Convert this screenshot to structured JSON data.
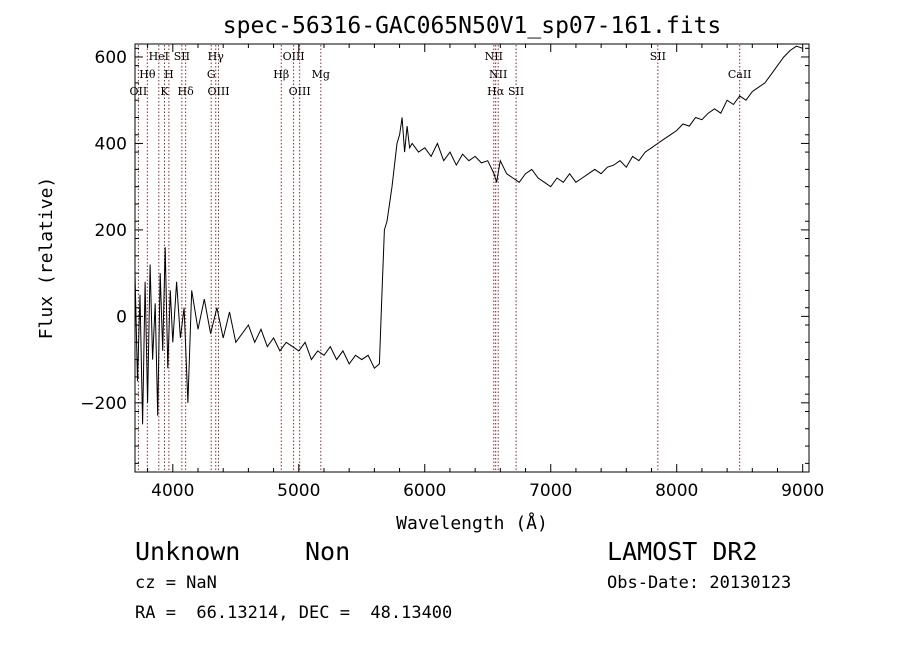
{
  "chart_data": {
    "type": "line",
    "title": "spec-56316-GAC065N50V1_sp07-161.fits",
    "xlabel": "Wavelength (Å)",
    "ylabel": "Flux (relative)",
    "xlim": [
      3700,
      9050
    ],
    "ylim": [
      -360,
      630
    ],
    "xticks": [
      4000,
      5000,
      6000,
      7000,
      8000,
      9000
    ],
    "yticks": [
      -200,
      0,
      200,
      400,
      600
    ],
    "grid": false,
    "line_color": "#000000",
    "marker_color": "#8b2a2a",
    "series": [
      {
        "x": [
          3700,
          3720,
          3740,
          3760,
          3780,
          3800,
          3820,
          3840,
          3860,
          3880,
          3900,
          3920,
          3940,
          3960,
          3980,
          4000,
          4030,
          4060,
          4090,
          4120,
          4150,
          4200,
          4250,
          4300,
          4350,
          4400,
          4450,
          4500,
          4550,
          4600,
          4650,
          4700,
          4750,
          4800,
          4850,
          4900,
          4950,
          5000,
          5050,
          5100,
          5150,
          5200,
          5250,
          5300,
          5350,
          5400,
          5450,
          5500,
          5550,
          5600,
          5640,
          5660,
          5680,
          5700,
          5720,
          5740,
          5760,
          5780,
          5800,
          5820,
          5840,
          5860,
          5880,
          5900,
          5950,
          6000,
          6050,
          6100,
          6150,
          6200,
          6250,
          6300,
          6350,
          6400,
          6450,
          6500,
          6550,
          6570,
          6600,
          6650,
          6700,
          6750,
          6800,
          6850,
          6900,
          6950,
          7000,
          7050,
          7100,
          7150,
          7200,
          7250,
          7300,
          7350,
          7400,
          7450,
          7500,
          7550,
          7600,
          7650,
          7700,
          7750,
          7800,
          7850,
          7900,
          7950,
          8000,
          8050,
          8100,
          8150,
          8200,
          8250,
          8300,
          8350,
          8400,
          8450,
          8500,
          8550,
          8600,
          8650,
          8700,
          8750,
          8800,
          8850,
          8900,
          8950,
          9000
        ],
        "y": [
          100,
          -150,
          50,
          -250,
          80,
          -200,
          120,
          -100,
          30,
          -230,
          100,
          -80,
          160,
          -120,
          60,
          -60,
          80,
          -50,
          20,
          -200,
          60,
          -30,
          40,
          -40,
          20,
          -50,
          10,
          -60,
          -40,
          -20,
          -60,
          -30,
          -70,
          -50,
          -80,
          -60,
          -70,
          -80,
          -60,
          -100,
          -80,
          -90,
          -70,
          -100,
          -80,
          -110,
          -90,
          -100,
          -90,
          -120,
          -110,
          50,
          200,
          220,
          260,
          300,
          350,
          400,
          420,
          460,
          380,
          440,
          390,
          400,
          380,
          390,
          370,
          400,
          360,
          380,
          350,
          375,
          360,
          370,
          355,
          360,
          330,
          310,
          360,
          330,
          320,
          310,
          330,
          340,
          320,
          310,
          300,
          320,
          310,
          330,
          310,
          320,
          330,
          340,
          330,
          345,
          350,
          360,
          345,
          370,
          360,
          380,
          390,
          400,
          410,
          420,
          430,
          445,
          440,
          460,
          455,
          470,
          480,
          470,
          500,
          490,
          510,
          500,
          520,
          530,
          540,
          560,
          580,
          600,
          615,
          625,
          620
        ]
      }
    ],
    "lines": [
      {
        "label": "OII",
        "x": 3727,
        "row": 3
      },
      {
        "label": "Hθ",
        "x": 3798,
        "row": 2
      },
      {
        "label": "HeI",
        "x": 3889,
        "row": 1
      },
      {
        "label": "K",
        "x": 3934,
        "row": 3
      },
      {
        "label": "H",
        "x": 3969,
        "row": 2
      },
      {
        "label": "SII",
        "x": 4072,
        "row": 1
      },
      {
        "label": "Hδ",
        "x": 4102,
        "row": 3
      },
      {
        "label": "G",
        "x": 4305,
        "row": 2
      },
      {
        "label": "Hγ",
        "x": 4341,
        "row": 1
      },
      {
        "label": "OIII",
        "x": 4363,
        "row": 3
      },
      {
        "label": "Hβ",
        "x": 4861,
        "row": 2
      },
      {
        "label": "OIII",
        "x": 4959,
        "row": 1
      },
      {
        "label": "OIII",
        "x": 5007,
        "row": 3
      },
      {
        "label": "Mg",
        "x": 5175,
        "row": 2
      },
      {
        "label": "NII",
        "x": 6548,
        "row": 1
      },
      {
        "label": "Hα",
        "x": 6563,
        "row": 3
      },
      {
        "label": "NII",
        "x": 6583,
        "row": 2
      },
      {
        "label": "SII",
        "x": 6725,
        "row": 3
      },
      {
        "label": "SII",
        "x": 7850,
        "row": 1
      },
      {
        "label": "CaII",
        "x": 8500,
        "row": 2
      }
    ]
  },
  "info": {
    "object_class": "Unknown",
    "object_subclass": "Non",
    "survey": "LAMOST DR2",
    "cz": "cz = NaN",
    "obs_date": "Obs-Date: 20130123",
    "radec": "RA =  66.13214, DEC =  48.13400"
  }
}
